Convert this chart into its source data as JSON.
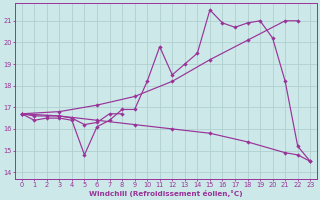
{
  "xlabel": "Windchill (Refroidissement éolien,°C)",
  "xlim": [
    -0.5,
    23.5
  ],
  "ylim": [
    13.7,
    21.8
  ],
  "yticks": [
    14,
    15,
    16,
    17,
    18,
    19,
    20,
    21
  ],
  "xticks": [
    0,
    1,
    2,
    3,
    4,
    5,
    6,
    7,
    8,
    9,
    10,
    11,
    12,
    13,
    14,
    15,
    16,
    17,
    18,
    19,
    20,
    21,
    22,
    23
  ],
  "bg_color": "#cce8e8",
  "grid_color": "#b0d0d0",
  "line_color": "#993399",
  "lines": [
    {
      "x": [
        0,
        1,
        2,
        3,
        4,
        5,
        6,
        7,
        8,
        9,
        10,
        11,
        12,
        13,
        14,
        15,
        16,
        17,
        18,
        19,
        20,
        21,
        22,
        23
      ],
      "y": [
        16.7,
        16.4,
        16.5,
        16.5,
        16.4,
        14.8,
        16.1,
        16.4,
        16.9,
        16.9,
        18.2,
        19.8,
        18.5,
        19.0,
        19.5,
        21.5,
        20.9,
        20.7,
        20.9,
        21.0,
        20.2,
        18.2,
        15.2,
        14.5
      ]
    },
    {
      "x": [
        0,
        3,
        6,
        9,
        12,
        15,
        18,
        21,
        22
      ],
      "y": [
        16.7,
        16.8,
        17.1,
        17.5,
        18.2,
        19.2,
        20.1,
        21.0,
        21.0
      ]
    },
    {
      "x": [
        0,
        3,
        6,
        9,
        12,
        15,
        18,
        21,
        22,
        23
      ],
      "y": [
        16.7,
        16.6,
        16.4,
        16.2,
        16.0,
        15.8,
        15.4,
        14.9,
        14.8,
        14.5
      ]
    },
    {
      "x": [
        0,
        1,
        2,
        3,
        4,
        5,
        6,
        7,
        8
      ],
      "y": [
        16.7,
        16.6,
        16.6,
        16.6,
        16.5,
        16.2,
        16.3,
        16.7,
        16.7
      ]
    }
  ]
}
